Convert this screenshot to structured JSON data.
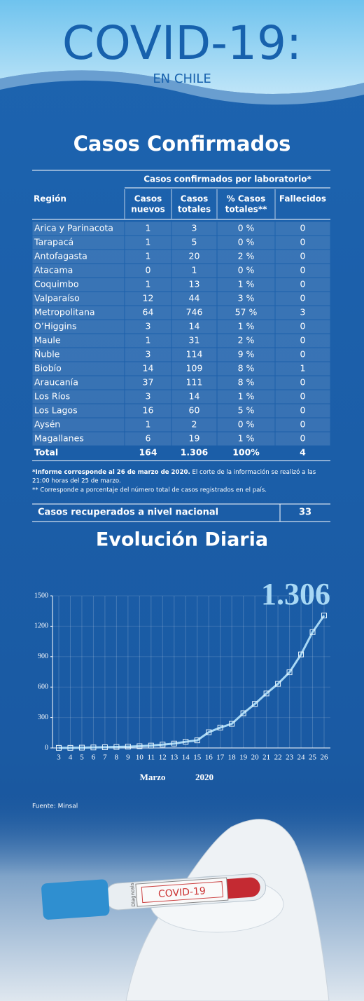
{
  "header": {
    "title": "COVID-19:",
    "subtitle": "EN CHILE"
  },
  "section_title": "Casos Confirmados",
  "table": {
    "group_header": "Casos confirmados por laboratorio*",
    "columns": [
      [
        "Región"
      ],
      [
        "Casos",
        "nuevos"
      ],
      [
        "Casos",
        "totales"
      ],
      [
        "% Casos",
        "totales**"
      ],
      [
        "Fallecidos"
      ]
    ],
    "rows": [
      [
        "Arica y Parinacota",
        "1",
        "3",
        "0 %",
        "0"
      ],
      [
        "Tarapacá",
        "1",
        "5",
        "0 %",
        "0"
      ],
      [
        "Antofagasta",
        "1",
        "20",
        "2 %",
        "0"
      ],
      [
        "Atacama",
        "0",
        "1",
        "0 %",
        "0"
      ],
      [
        "Coquimbo",
        "1",
        "13",
        "1 %",
        "0"
      ],
      [
        "Valparaíso",
        "12",
        "44",
        "3 %",
        "0"
      ],
      [
        "Metropolitana",
        "64",
        "746",
        "57 %",
        "3"
      ],
      [
        "O’Higgins",
        "3",
        "14",
        "1 %",
        "0"
      ],
      [
        "Maule",
        "1",
        "31",
        "2 %",
        "0"
      ],
      [
        "Ñuble",
        "3",
        "114",
        "9 %",
        "0"
      ],
      [
        "Biobío",
        "14",
        "109",
        "8 %",
        "1"
      ],
      [
        "Araucanía",
        "37",
        "111",
        "8 %",
        "0"
      ],
      [
        "Los Ríos",
        "3",
        "14",
        "1 %",
        "0"
      ],
      [
        "Los Lagos",
        "16",
        "60",
        "5 %",
        "0"
      ],
      [
        "Aysén",
        "1",
        "2",
        "0 %",
        "0"
      ],
      [
        "Magallanes",
        "6",
        "19",
        "1 %",
        "0"
      ]
    ],
    "total": [
      "Total",
      "164",
      "1.306",
      "100%",
      "4"
    ]
  },
  "notes": {
    "line1_bold": "*Informe corresponde al 26 de marzo de 2020.",
    "line1": " El corte de la información se realizó a las",
    "line2": "21:00 horas del 25 de marzo.",
    "line3": "** Corresponde a porcentaje del número total de casos registrados en el país."
  },
  "recovered": {
    "label": "Casos  recuperados a nivel nacional",
    "value": "33"
  },
  "chart_data": {
    "type": "line",
    "title": "Evolución Diaria",
    "annotation": "1.306",
    "categories": [
      "3",
      "4",
      "5",
      "6",
      "7",
      "8",
      "9",
      "10",
      "11",
      "12",
      "13",
      "14",
      "15",
      "16",
      "17",
      "18",
      "19",
      "20",
      "21",
      "22",
      "23",
      "24",
      "25",
      "26"
    ],
    "values": [
      1,
      1,
      3,
      5,
      7,
      10,
      13,
      17,
      23,
      33,
      43,
      61,
      75,
      155,
      201,
      238,
      342,
      434,
      537,
      632,
      746,
      922,
      1142,
      1306
    ],
    "color": "#a8d8f5",
    "ylim": [
      0,
      1500
    ],
    "yticks": [
      0,
      300,
      600,
      900,
      1200,
      1500
    ],
    "grid": true,
    "x_label_month": "Marzo",
    "x_label_year": "2020"
  },
  "source": "Fuente: Minsal",
  "image": {
    "tube_label": "COVID-19",
    "tube_brand": "Diagnosis"
  }
}
